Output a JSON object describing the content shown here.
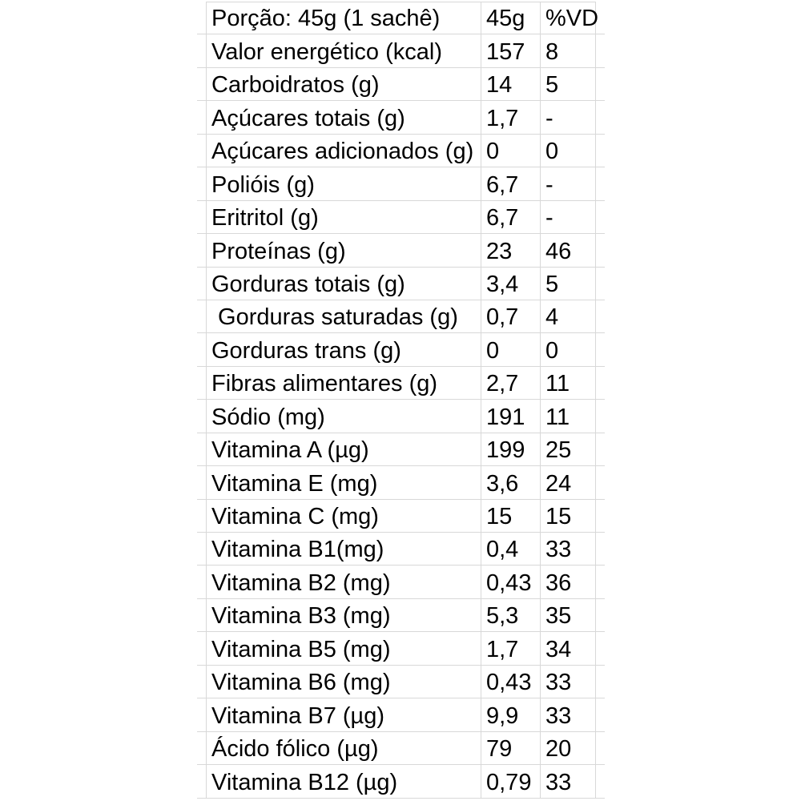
{
  "page": {
    "background_color": "#ffffff",
    "gridline_color": "#d8d8d8",
    "text_color": "#000000"
  },
  "chart_data": {
    "type": "table",
    "columns": [
      "Porção: 45g (1 sachê)",
      "45g",
      "%VD"
    ],
    "rows": [
      [
        "Valor energético (kcal)",
        "157",
        "8"
      ],
      [
        "Carboidratos (g)",
        "14",
        "5"
      ],
      [
        "Açúcares totais (g)",
        "1,7",
        "-"
      ],
      [
        "Açúcares adicionados (g)",
        "0",
        "0"
      ],
      [
        "Polióis (g)",
        "6,7",
        "-"
      ],
      [
        "Eritritol (g)",
        "6,7",
        "-"
      ],
      [
        "Proteínas (g)",
        "23",
        "46"
      ],
      [
        "Gorduras totais (g)",
        "3,4",
        "5"
      ],
      [
        " Gorduras saturadas (g)",
        "0,7",
        "4"
      ],
      [
        "Gorduras trans (g)",
        "0",
        "0"
      ],
      [
        "Fibras alimentares (g)",
        "2,7",
        "11"
      ],
      [
        "Sódio (mg)",
        "191",
        "11"
      ],
      [
        "Vitamina A (µg)",
        "199",
        "25"
      ],
      [
        "Vitamina E (mg)",
        "3,6",
        "24"
      ],
      [
        "Vitamina C (mg)",
        "15",
        "15"
      ],
      [
        "Vitamina B1(mg)",
        "0,4",
        "33"
      ],
      [
        "Vitamina B2 (mg)",
        "0,43",
        "36"
      ],
      [
        "Vitamina B3 (mg)",
        "5,3",
        "35"
      ],
      [
        "Vitamina B5 (mg)",
        "1,7",
        "34"
      ],
      [
        "Vitamina B6 (mg)",
        "0,43",
        "33"
      ],
      [
        "Vitamina B7 (µg)",
        "9,9",
        "33"
      ],
      [
        "Ácido fólico (µg)",
        "79",
        "20"
      ],
      [
        "Vitamina B12 (µg)",
        "0,79",
        "33"
      ]
    ]
  }
}
